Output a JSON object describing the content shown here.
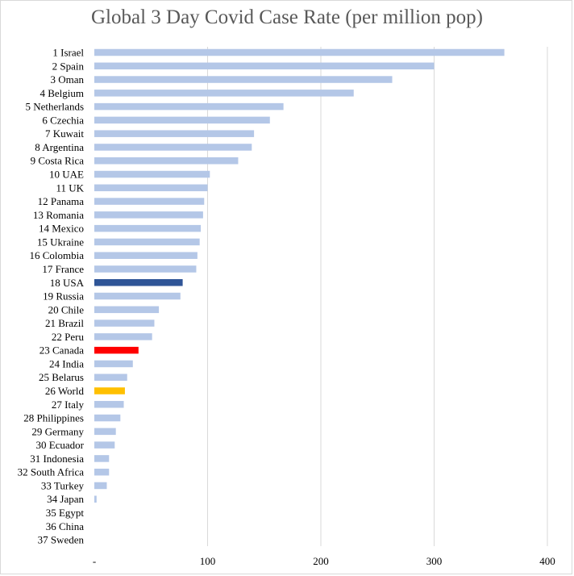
{
  "chart_data": {
    "type": "bar",
    "orientation": "horizontal",
    "title": "Global 3 Day Covid Case Rate (per million pop)",
    "xlabel": "",
    "ylabel": "",
    "xlim": [
      0,
      400
    ],
    "x_ticks": [
      0,
      100,
      200,
      300,
      400
    ],
    "x_tick_labels": [
      "-",
      "100",
      "200",
      "300",
      "400"
    ],
    "grid": true,
    "legend": "none",
    "categories": [
      "1  Israel",
      "2  Spain",
      "3  Oman",
      "4  Belgium",
      "5  Netherlands",
      "6  Czechia",
      "7  Kuwait",
      "8  Argentina",
      "9  Costa Rica",
      "10  UAE",
      "11  UK",
      "12  Panama",
      "13  Romania",
      "14  Mexico",
      "15  Ukraine",
      "16  Colombia",
      "17  France",
      "18  USA",
      "19  Russia",
      "20  Chile",
      "21  Brazil",
      "22  Peru",
      "23  Canada",
      "24  India",
      "25  Belarus",
      "26  World",
      "27  Italy",
      "28  Philippines",
      "29  Germany",
      "30  Ecuador",
      "31  Indonesia",
      "32  South Africa",
      "33  Turkey",
      "34  Japan",
      "35  Egypt",
      "36  China",
      "37  Sweden"
    ],
    "values": [
      362,
      300,
      263,
      229,
      167,
      155,
      141,
      139,
      127,
      102,
      100,
      97,
      96,
      94,
      93,
      91,
      90,
      78,
      76,
      57,
      53,
      51,
      39,
      34,
      29,
      27,
      26,
      23,
      19,
      18,
      13,
      13,
      11,
      2,
      0,
      0,
      0
    ],
    "colors": {
      "default": "#b4c7e7",
      "18  USA": "#2f5597",
      "23  Canada": "#ff0000",
      "26  World": "#ffc000"
    }
  }
}
